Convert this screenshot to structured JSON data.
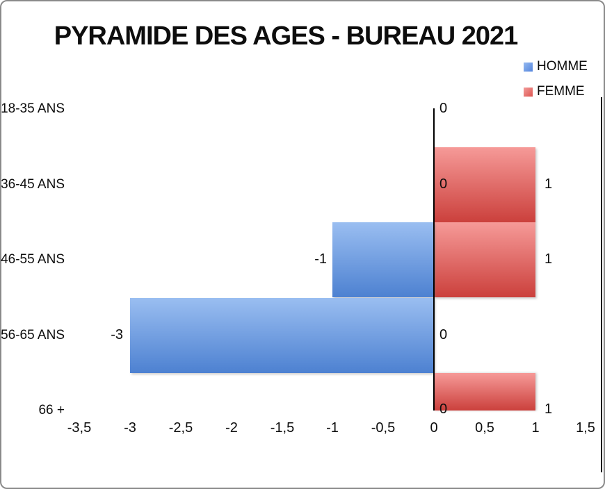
{
  "chart_data": {
    "type": "bar",
    "orientation": "horizontal",
    "title": "PYRAMIDE DES AGES - BUREAU 2021",
    "categories": [
      "18-35 ANS",
      "36-45 ANS",
      "46-55 ANS",
      "56-65 ANS",
      "66 +"
    ],
    "series": [
      {
        "name": "HOMME",
        "values": [
          0,
          0,
          -1,
          -3,
          0
        ],
        "color_top": "#9abef1",
        "color_bottom": "#4d81d1"
      },
      {
        "name": "FEMME",
        "values": [
          0,
          1,
          1,
          0,
          1
        ],
        "color_top": "#f69a98",
        "color_bottom": "#cb403c"
      }
    ],
    "data_labels": {
      "homme": [
        "0",
        "0",
        "-1",
        "-3",
        "0"
      ],
      "femme": [
        "",
        "1",
        "1",
        "0",
        "1"
      ]
    },
    "xlim": [
      -3.5,
      1.5
    ],
    "x_tick_labels": [
      "-3,5",
      "-3",
      "-2,5",
      "-2",
      "-1,5",
      "-1",
      "-0,5",
      "0",
      "0,5",
      "1",
      "1,5"
    ],
    "grid": false,
    "legend_position": "top-right"
  },
  "legend": {
    "items": [
      {
        "label": "HOMME",
        "color": "#6d9ee9"
      },
      {
        "label": "FEMME",
        "color": "#e77571"
      }
    ]
  }
}
